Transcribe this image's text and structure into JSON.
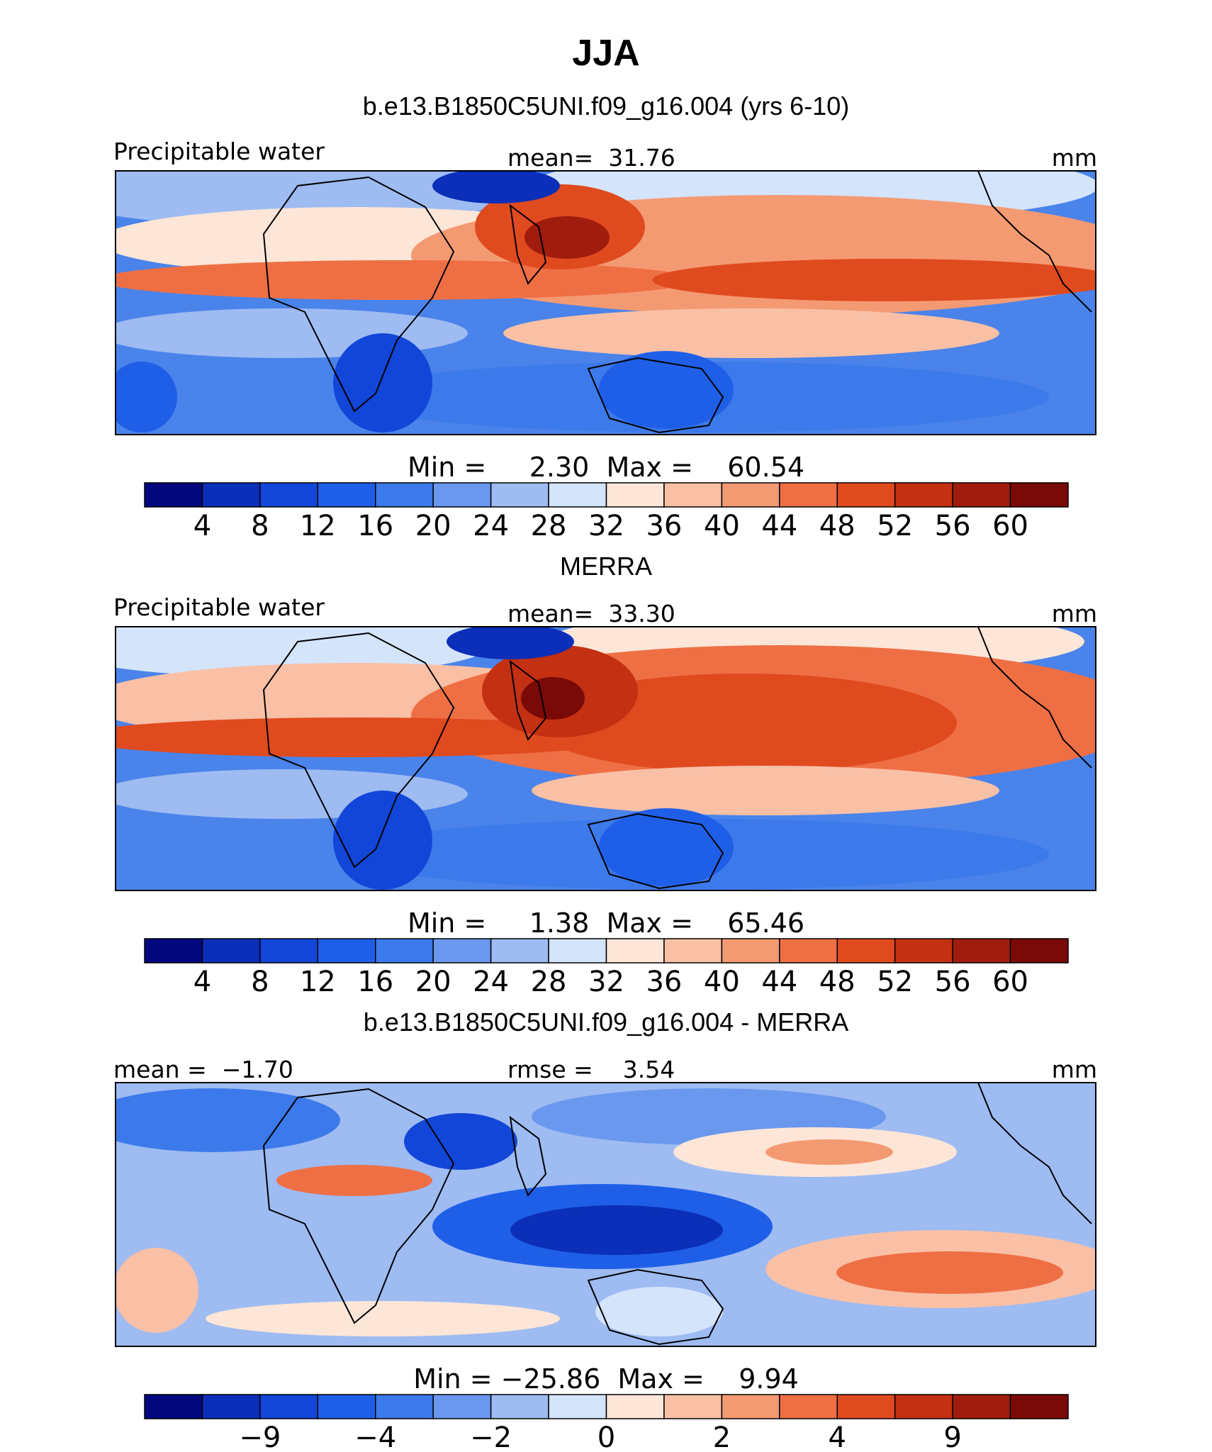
{
  "figure_title": "JJA",
  "chart_data": [
    {
      "type": "heatmap",
      "title": "b.e13.B1850C5UNI.f09_g16.004 (yrs 6-10)",
      "left_label": "Precipitable water",
      "center_label": "mean=  31.76",
      "units": "mm",
      "range_label": "Min =     2.30  Max =    60.54",
      "min": 2.3,
      "max": 60.54,
      "mean": 31.76,
      "colorbar_ticks": [
        "4",
        "8",
        "12",
        "16",
        "20",
        "24",
        "28",
        "32",
        "36",
        "40",
        "44",
        "48",
        "52",
        "56",
        "60"
      ],
      "colors": [
        "#04087e",
        "#0b2fb8",
        "#1246d8",
        "#1f5fe8",
        "#3c79ea",
        "#6a98ee",
        "#9ebbf2",
        "#d4e4fa",
        "#fde6d8",
        "#f9c0a6",
        "#f49a73",
        "#ef6f45",
        "#e04a1f",
        "#c33012",
        "#a01c0c",
        "#7a0a07"
      ]
    },
    {
      "type": "heatmap",
      "title": "MERRA",
      "left_label": "Precipitable water",
      "center_label": "mean=  33.30",
      "units": "mm",
      "range_label": "Min =     1.38  Max =    65.46",
      "min": 1.38,
      "max": 65.46,
      "mean": 33.3,
      "colorbar_ticks": [
        "4",
        "8",
        "12",
        "16",
        "20",
        "24",
        "28",
        "32",
        "36",
        "40",
        "44",
        "48",
        "52",
        "56",
        "60"
      ],
      "colors": [
        "#04087e",
        "#0b2fb8",
        "#1246d8",
        "#1f5fe8",
        "#3c79ea",
        "#6a98ee",
        "#9ebbf2",
        "#d4e4fa",
        "#fde6d8",
        "#f9c0a6",
        "#f49a73",
        "#ef6f45",
        "#e04a1f",
        "#c33012",
        "#a01c0c",
        "#7a0a07"
      ]
    },
    {
      "type": "heatmap",
      "title": "b.e13.B1850C5UNI.f09_g16.004 - MERRA",
      "left_label": "mean =  −1.70",
      "center_label": "rmse =    3.54",
      "units": "mm",
      "range_label": "Min = −25.86  Max =    9.94",
      "min": -25.86,
      "max": 9.94,
      "mean": -1.7,
      "rmse": 3.54,
      "colorbar_ticks": [
        "−9",
        "−4",
        "−2",
        "0",
        "2",
        "4",
        "9"
      ],
      "colors": [
        "#04087e",
        "#0b2fb8",
        "#1246d8",
        "#1f5fe8",
        "#3c79ea",
        "#6a98ee",
        "#9ebbf2",
        "#d4e4fa",
        "#fde6d8",
        "#f9c0a6",
        "#f49a73",
        "#ef6f45",
        "#e04a1f",
        "#c33012",
        "#a01c0c",
        "#7a0a07"
      ]
    }
  ]
}
